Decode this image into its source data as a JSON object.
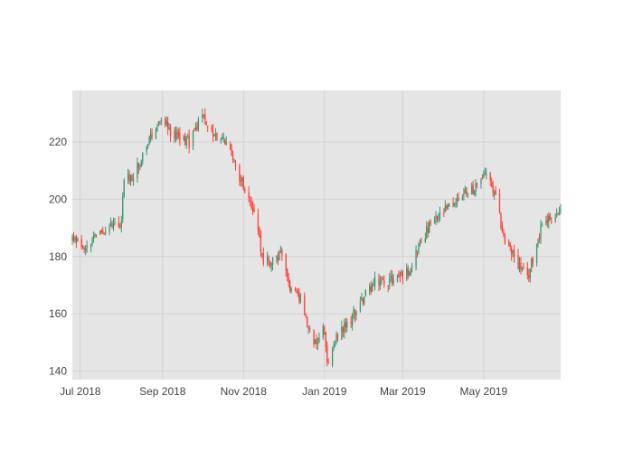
{
  "chart_data": {
    "type": "candlestick",
    "title": "",
    "xlabel": "",
    "ylabel": "",
    "grid": true,
    "legend": "none",
    "xlim": [
      "2018-06-25",
      "2019-06-28"
    ],
    "ylim": [
      137,
      238
    ],
    "x_ticks": [
      {
        "date": "2018-07-01",
        "label": "Jul 2018"
      },
      {
        "date": "2018-09-01",
        "label": "Sep 2018"
      },
      {
        "date": "2018-11-01",
        "label": "Nov 2018"
      },
      {
        "date": "2019-01-01",
        "label": "Jan 2019"
      },
      {
        "date": "2019-03-01",
        "label": "Mar 2019"
      },
      {
        "date": "2019-05-01",
        "label": "May 2019"
      }
    ],
    "y_ticks": [
      140,
      160,
      180,
      200,
      220
    ],
    "colors": {
      "increasing": "#3D9970",
      "decreasing": "#FF4136",
      "plot_bg": "#E5E5E5",
      "grid": "#D4D4D4",
      "paper_bg": "#FFFFFF"
    },
    "anchors": [
      [
        "2018-06-25",
        186
      ],
      [
        "2018-07-06",
        184
      ],
      [
        "2018-07-20",
        190
      ],
      [
        "2018-08-01",
        191
      ],
      [
        "2018-08-03",
        208
      ],
      [
        "2018-08-10",
        208
      ],
      [
        "2018-08-17",
        216
      ],
      [
        "2018-08-31",
        228
      ],
      [
        "2018-09-10",
        222
      ],
      [
        "2018-09-21",
        220
      ],
      [
        "2018-10-01",
        229
      ],
      [
        "2018-10-04",
        225
      ],
      [
        "2018-10-19",
        219
      ],
      [
        "2018-11-01",
        205
      ],
      [
        "2018-11-09",
        195
      ],
      [
        "2018-11-16",
        178
      ],
      [
        "2018-11-30",
        180
      ],
      [
        "2018-12-07",
        168
      ],
      [
        "2018-12-14",
        165
      ],
      [
        "2018-12-24",
        148
      ],
      [
        "2018-12-31",
        157
      ],
      [
        "2019-01-03",
        143
      ],
      [
        "2019-01-11",
        152
      ],
      [
        "2019-01-18",
        156
      ],
      [
        "2019-01-31",
        166
      ],
      [
        "2019-02-08",
        171
      ],
      [
        "2019-02-22",
        172
      ],
      [
        "2019-03-05",
        175
      ],
      [
        "2019-03-15",
        186
      ],
      [
        "2019-03-22",
        191
      ],
      [
        "2019-04-05",
        197
      ],
      [
        "2019-04-18",
        203
      ],
      [
        "2019-04-26",
        204
      ],
      [
        "2019-05-02",
        210
      ],
      [
        "2019-05-10",
        200
      ],
      [
        "2019-05-17",
        185
      ],
      [
        "2019-05-24",
        180
      ],
      [
        "2019-06-03",
        172
      ],
      [
        "2019-06-14",
        192
      ],
      [
        "2019-06-28",
        195
      ]
    ]
  }
}
